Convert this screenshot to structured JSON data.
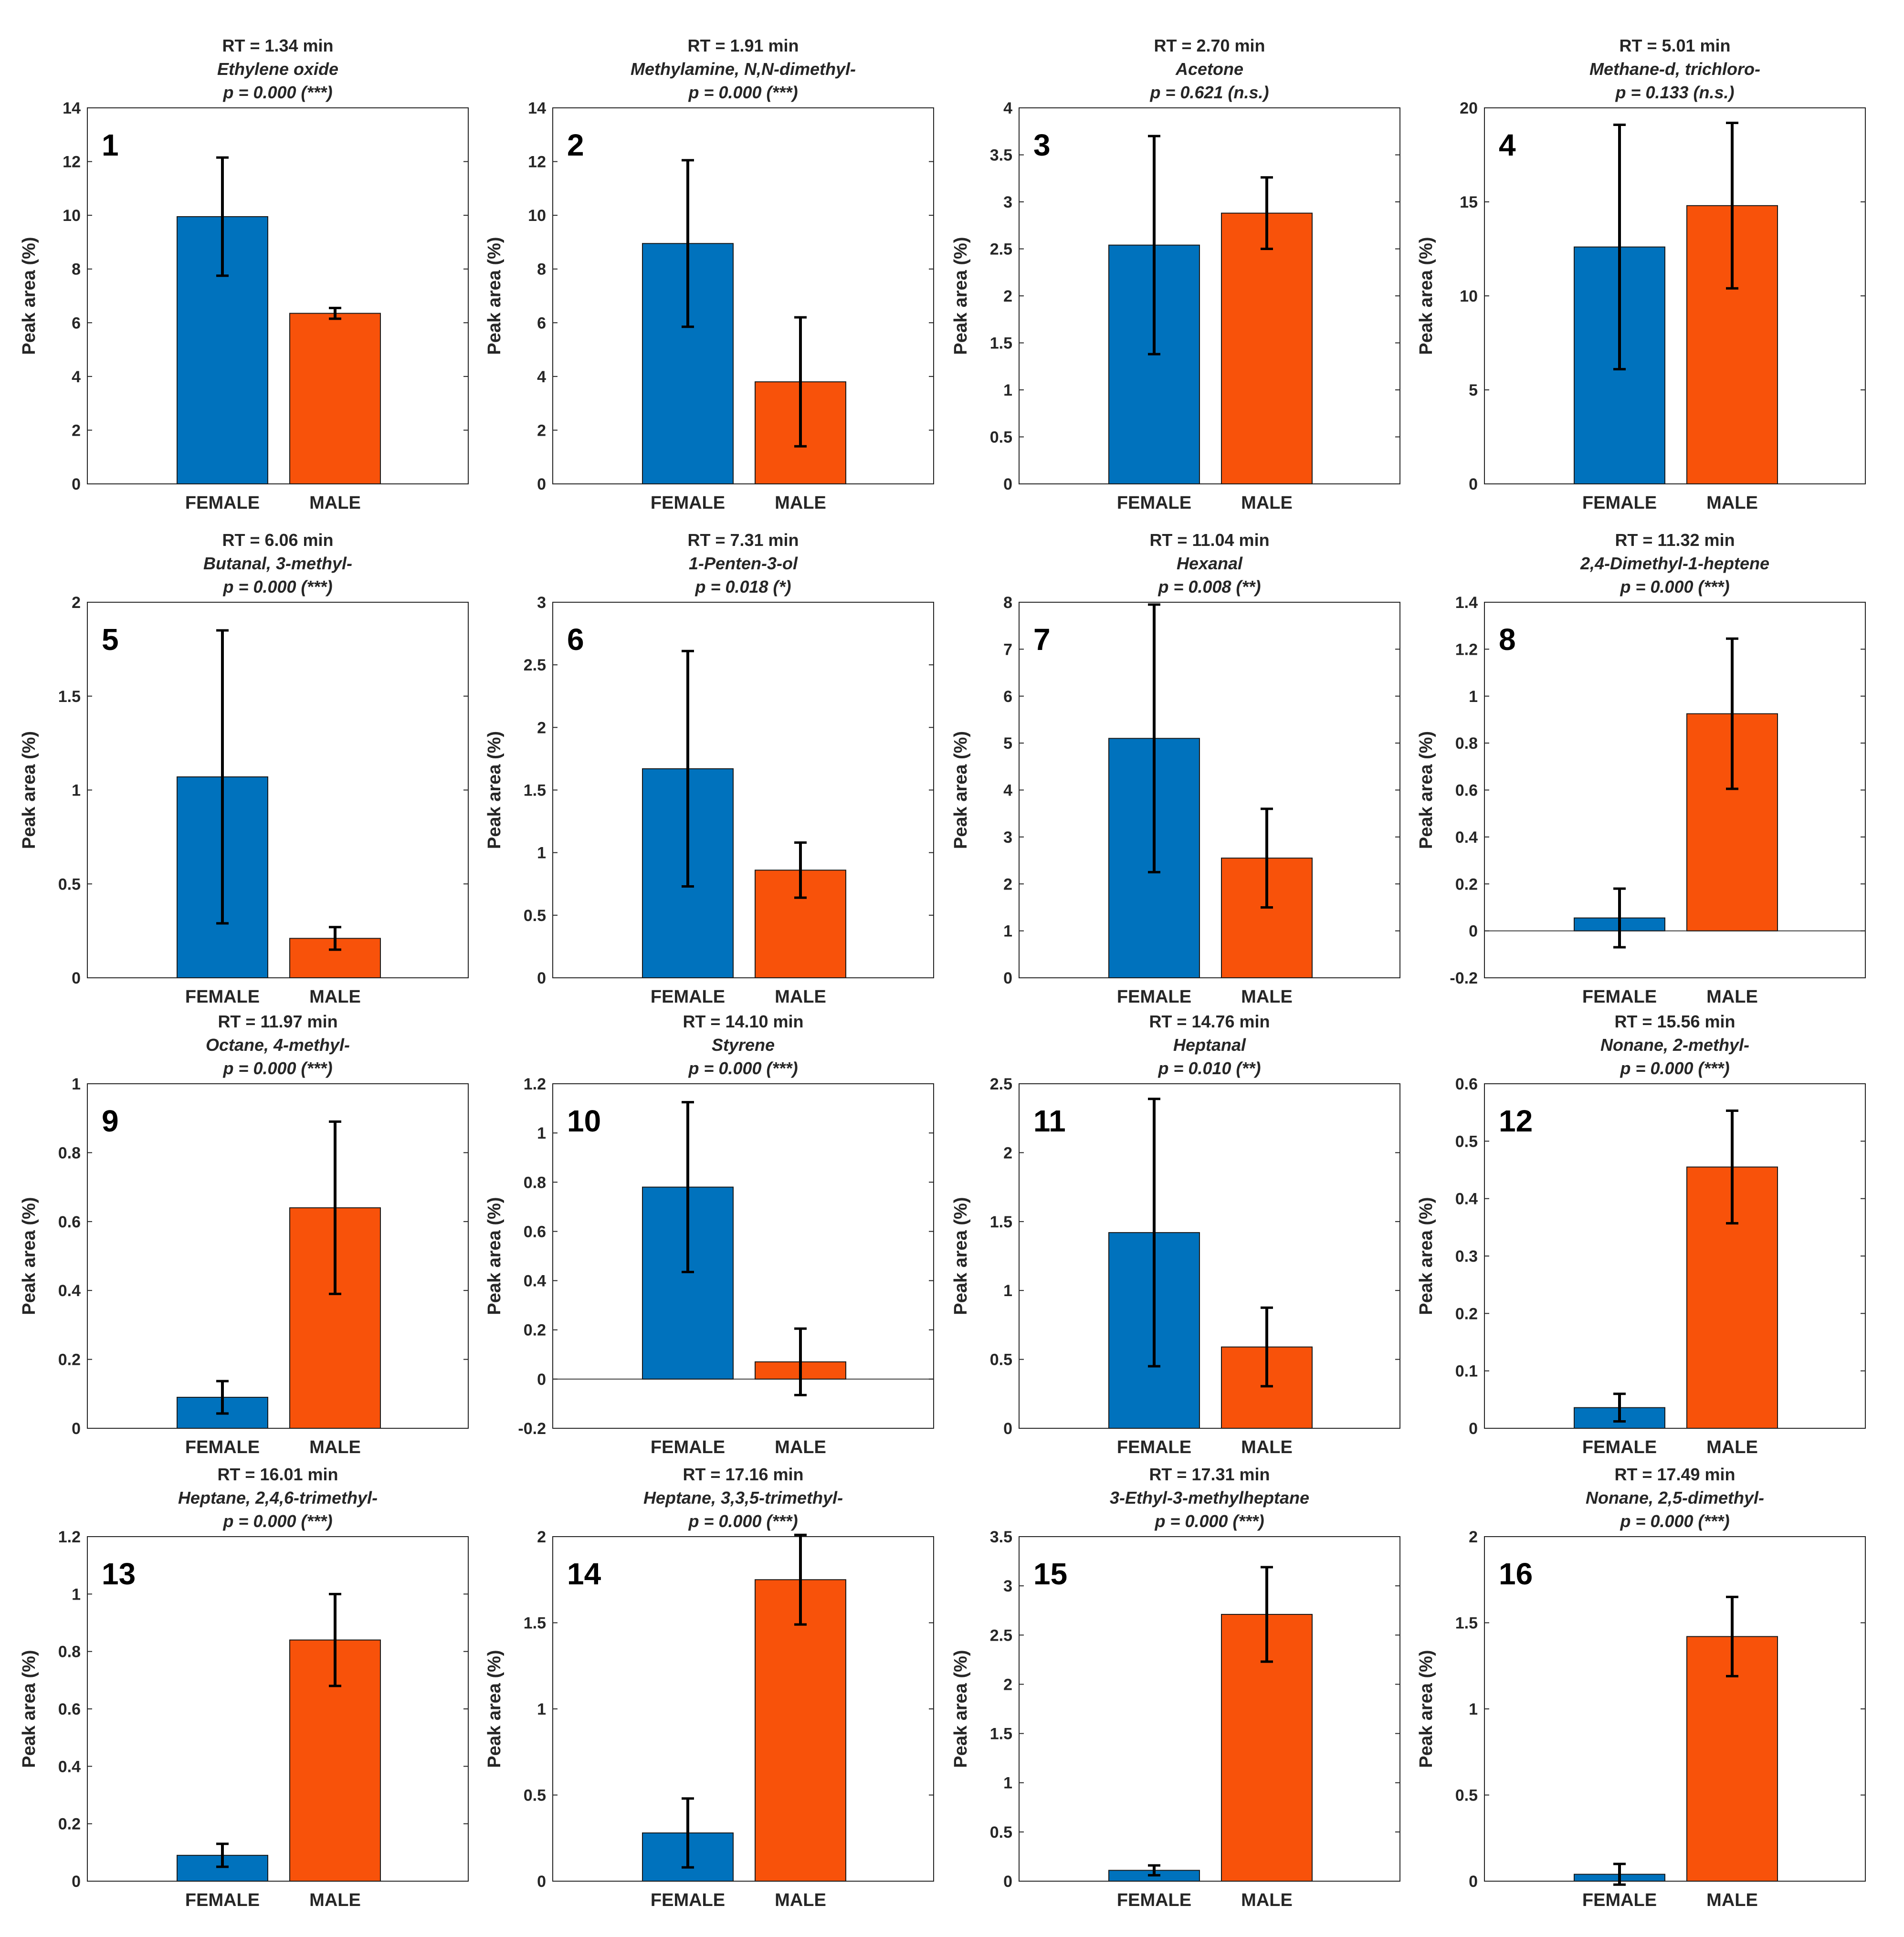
{
  "figure": {
    "colors": {
      "female": "#0072BD",
      "male": "#F8520A",
      "axis": "#262626",
      "errorbar": "#000000"
    },
    "ylabel": "Peak area (%)",
    "categories": [
      "FEMALE",
      "MALE"
    ]
  },
  "chart_data": [
    {
      "type": "bar",
      "panel": "1",
      "rt": "RT = 1.34 min",
      "compound": "Ethylene oxide",
      "p": "p = 0.000 (***)",
      "xlabel": "",
      "ylabel": "Peak area (%)",
      "categories": [
        "FEMALE",
        "MALE"
      ],
      "values": [
        9.95,
        6.35
      ],
      "errors": [
        2.2,
        0.2
      ],
      "ylim": [
        0,
        14
      ],
      "yticks": [
        0,
        2,
        4,
        6,
        8,
        10,
        12,
        14
      ],
      "ytick_labels": [
        "0",
        "2",
        "4",
        "6",
        "8",
        "10",
        "12",
        "14"
      ]
    },
    {
      "type": "bar",
      "panel": "2",
      "rt": "RT = 1.91 min",
      "compound": "Methylamine, N,N-dimethyl-",
      "p": "p = 0.000 (***)",
      "xlabel": "",
      "ylabel": "Peak area (%)",
      "categories": [
        "FEMALE",
        "MALE"
      ],
      "values": [
        8.95,
        3.8
      ],
      "errors": [
        3.1,
        2.4
      ],
      "ylim": [
        0,
        14
      ],
      "yticks": [
        0,
        2,
        4,
        6,
        8,
        10,
        12,
        14
      ],
      "ytick_labels": [
        "0",
        "2",
        "4",
        "6",
        "8",
        "10",
        "12",
        "14"
      ]
    },
    {
      "type": "bar",
      "panel": "3",
      "rt": "RT = 2.70 min",
      "compound": "Acetone",
      "p": "p = 0.621 (n.s.)",
      "xlabel": "",
      "ylabel": "Peak area (%)",
      "categories": [
        "FEMALE",
        "MALE"
      ],
      "values": [
        2.54,
        2.88
      ],
      "errors": [
        1.16,
        0.38
      ],
      "ylim": [
        0,
        4
      ],
      "yticks": [
        0,
        0.5,
        1,
        1.5,
        2,
        2.5,
        3,
        3.5,
        4
      ],
      "ytick_labels": [
        "0",
        "0.5",
        "1",
        "1.5",
        "2",
        "2.5",
        "3",
        "3.5",
        "4"
      ]
    },
    {
      "type": "bar",
      "panel": "4",
      "rt": "RT = 5.01 min",
      "compound": "Methane-d, trichloro-",
      "p": "p = 0.133 (n.s.)",
      "xlabel": "",
      "ylabel": "Peak area (%)",
      "categories": [
        "FEMALE",
        "MALE"
      ],
      "values": [
        12.6,
        14.8
      ],
      "errors": [
        6.5,
        4.4
      ],
      "ylim": [
        0,
        20
      ],
      "yticks": [
        0,
        5,
        10,
        15,
        20
      ],
      "ytick_labels": [
        "0",
        "5",
        "10",
        "15",
        "20"
      ]
    },
    {
      "type": "bar",
      "panel": "5",
      "rt": "RT = 6.06 min",
      "compound": "Butanal, 3-methyl-",
      "p": "p = 0.000 (***)",
      "xlabel": "",
      "ylabel": "Peak area (%)",
      "categories": [
        "FEMALE",
        "MALE"
      ],
      "values": [
        1.07,
        0.21
      ],
      "errors": [
        0.78,
        0.06
      ],
      "ylim": [
        0,
        2
      ],
      "yticks": [
        0,
        0.5,
        1,
        1.5,
        2
      ],
      "ytick_labels": [
        "0",
        "0.5",
        "1",
        "1.5",
        "2"
      ]
    },
    {
      "type": "bar",
      "panel": "6",
      "rt": "RT = 7.31 min",
      "compound": "1-Penten-3-ol",
      "p": "p = 0.018 (*)",
      "xlabel": "",
      "ylabel": "Peak area (%)",
      "categories": [
        "FEMALE",
        "MALE"
      ],
      "values": [
        1.67,
        0.86
      ],
      "errors": [
        0.94,
        0.22
      ],
      "ylim": [
        0,
        3
      ],
      "yticks": [
        0,
        0.5,
        1,
        1.5,
        2,
        2.5,
        3
      ],
      "ytick_labels": [
        "0",
        "0.5",
        "1",
        "1.5",
        "2",
        "2.5",
        "3"
      ]
    },
    {
      "type": "bar",
      "panel": "7",
      "rt": "RT = 11.04 min",
      "compound": "Hexanal",
      "p": "p = 0.008 (**)",
      "xlabel": "",
      "ylabel": "Peak area (%)",
      "categories": [
        "FEMALE",
        "MALE"
      ],
      "values": [
        5.1,
        2.55
      ],
      "errors": [
        2.85,
        1.05
      ],
      "ylim": [
        0,
        8
      ],
      "yticks": [
        0,
        1,
        2,
        3,
        4,
        5,
        6,
        7,
        8
      ],
      "ytick_labels": [
        "0",
        "1",
        "2",
        "3",
        "4",
        "5",
        "6",
        "7",
        "8"
      ]
    },
    {
      "type": "bar",
      "panel": "8",
      "rt": "RT = 11.32 min",
      "compound": "2,4-Dimethyl-1-heptene",
      "p": "p = 0.000 (***)",
      "xlabel": "",
      "ylabel": "Peak area (%)",
      "categories": [
        "FEMALE",
        "MALE"
      ],
      "values": [
        0.055,
        0.925
      ],
      "errors": [
        0.125,
        0.32
      ],
      "ylim": [
        -0.2,
        1.4
      ],
      "yticks": [
        -0.2,
        0,
        0.2,
        0.4,
        0.6,
        0.8,
        1,
        1.2,
        1.4
      ],
      "ytick_labels": [
        "-0.2",
        "0",
        "0.2",
        "0.4",
        "0.6",
        "0.8",
        "1",
        "1.2",
        "1.4"
      ]
    },
    {
      "type": "bar",
      "panel": "9",
      "rt": "RT = 11.97 min",
      "compound": "Octane, 4-methyl-",
      "p": "p = 0.000 (***)",
      "xlabel": "",
      "ylabel": "Peak area (%)",
      "categories": [
        "FEMALE",
        "MALE"
      ],
      "values": [
        0.09,
        0.64
      ],
      "errors": [
        0.047,
        0.25
      ],
      "ylim": [
        0,
        1
      ],
      "yticks": [
        0,
        0.2,
        0.4,
        0.6,
        0.8,
        1
      ],
      "ytick_labels": [
        "0",
        "0.2",
        "0.4",
        "0.6",
        "0.8",
        "1"
      ]
    },
    {
      "type": "bar",
      "panel": "10",
      "rt": "RT = 14.10 min",
      "compound": "Styrene",
      "p": "p = 0.000 (***)",
      "xlabel": "",
      "ylabel": "Peak area (%)",
      "categories": [
        "FEMALE",
        "MALE"
      ],
      "values": [
        0.78,
        0.07
      ],
      "errors": [
        0.345,
        0.135
      ],
      "ylim": [
        -0.2,
        1.2
      ],
      "yticks": [
        -0.2,
        0,
        0.2,
        0.4,
        0.6,
        0.8,
        1,
        1.2
      ],
      "ytick_labels": [
        "-0.2",
        "0",
        "0.2",
        "0.4",
        "0.6",
        "0.8",
        "1",
        "1.2"
      ]
    },
    {
      "type": "bar",
      "panel": "11",
      "rt": "RT = 14.76 min",
      "compound": "Heptanal",
      "p": "p = 0.010 (**)",
      "xlabel": "",
      "ylabel": "Peak area (%)",
      "categories": [
        "FEMALE",
        "MALE"
      ],
      "values": [
        1.42,
        0.59
      ],
      "errors": [
        0.97,
        0.285
      ],
      "ylim": [
        0,
        2.5
      ],
      "yticks": [
        0,
        0.5,
        1,
        1.5,
        2,
        2.5
      ],
      "ytick_labels": [
        "0",
        "0.5",
        "1",
        "1.5",
        "2",
        "2.5"
      ]
    },
    {
      "type": "bar",
      "panel": "12",
      "rt": "RT = 15.56 min",
      "compound": "Nonane, 2-methyl-",
      "p": "p = 0.000 (***)",
      "xlabel": "",
      "ylabel": "Peak area (%)",
      "categories": [
        "FEMALE",
        "MALE"
      ],
      "values": [
        0.036,
        0.455
      ],
      "errors": [
        0.024,
        0.098
      ],
      "ylim": [
        0,
        0.6
      ],
      "yticks": [
        0,
        0.1,
        0.2,
        0.3,
        0.4,
        0.5,
        0.6
      ],
      "ytick_labels": [
        "0",
        "0.1",
        "0.2",
        "0.3",
        "0.4",
        "0.5",
        "0.6"
      ]
    },
    {
      "type": "bar",
      "panel": "13",
      "rt": "RT = 16.01 min",
      "compound": "Heptane, 2,4,6-trimethyl-",
      "p": "p = 0.000 (***)",
      "xlabel": "",
      "ylabel": "Peak area (%)",
      "categories": [
        "FEMALE",
        "MALE"
      ],
      "values": [
        0.09,
        0.84
      ],
      "errors": [
        0.04,
        0.16
      ],
      "ylim": [
        0,
        1.2
      ],
      "yticks": [
        0,
        0.2,
        0.4,
        0.6,
        0.8,
        1,
        1.2
      ],
      "ytick_labels": [
        "0",
        "0.2",
        "0.4",
        "0.6",
        "0.8",
        "1",
        "1.2"
      ]
    },
    {
      "type": "bar",
      "panel": "14",
      "rt": "RT = 17.16 min",
      "compound": "Heptane, 3,3,5-trimethyl-",
      "p": "p = 0.000 (***)",
      "xlabel": "",
      "ylabel": "Peak area (%)",
      "categories": [
        "FEMALE",
        "MALE"
      ],
      "values": [
        0.28,
        1.75
      ],
      "errors": [
        0.2,
        0.26
      ],
      "ylim": [
        0,
        2
      ],
      "yticks": [
        0,
        0.5,
        1,
        1.5,
        2
      ],
      "ytick_labels": [
        "0",
        "0.5",
        "1",
        "1.5",
        "2"
      ]
    },
    {
      "type": "bar",
      "panel": "15",
      "rt": "RT = 17.31 min",
      "compound": "3-Ethyl-3-methylheptane",
      "p": "p = 0.000 (***)",
      "xlabel": "",
      "ylabel": "Peak area (%)",
      "categories": [
        "FEMALE",
        "MALE"
      ],
      "values": [
        0.11,
        2.71
      ],
      "errors": [
        0.05,
        0.48
      ],
      "ylim": [
        0,
        3.5
      ],
      "yticks": [
        0,
        0.5,
        1,
        1.5,
        2,
        2.5,
        3,
        3.5
      ],
      "ytick_labels": [
        "0",
        "0.5",
        "1",
        "1.5",
        "2",
        "2.5",
        "3",
        "3.5"
      ]
    },
    {
      "type": "bar",
      "panel": "16",
      "rt": "RT = 17.49 min",
      "compound": "Nonane, 2,5-dimethyl-",
      "p": "p = 0.000 (***)",
      "xlabel": "",
      "ylabel": "Peak area (%)",
      "categories": [
        "FEMALE",
        "MALE"
      ],
      "values": [
        0.04,
        1.42
      ],
      "errors": [
        0.06,
        0.23
      ],
      "ylim": [
        0,
        2
      ],
      "yticks": [
        0,
        0.5,
        1,
        1.5,
        2
      ],
      "ytick_labels": [
        "0",
        "0.5",
        "1",
        "1.5",
        "2"
      ]
    }
  ]
}
